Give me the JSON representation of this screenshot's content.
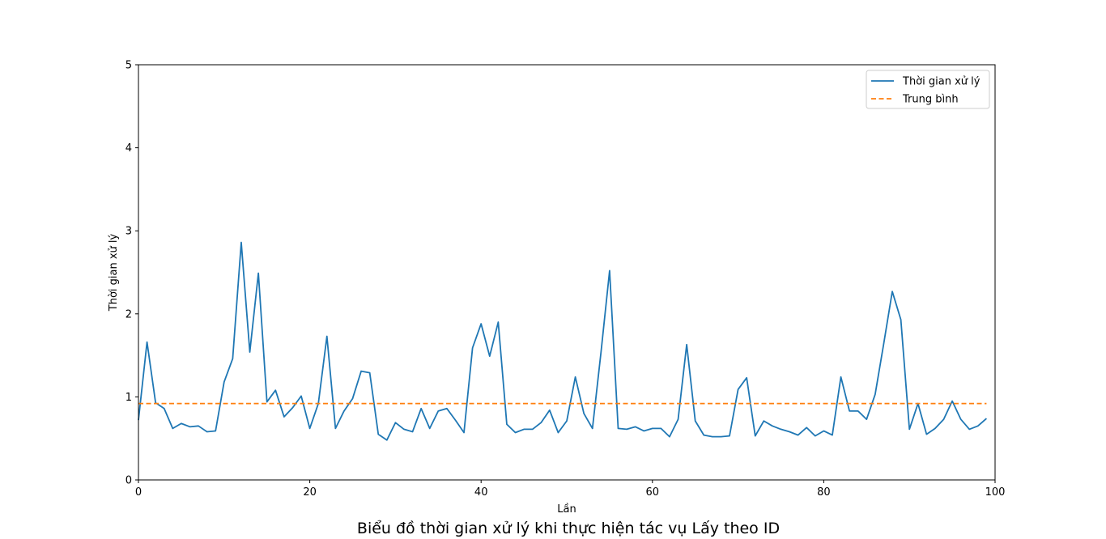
{
  "chart_data": {
    "type": "line",
    "title": "Biểu đồ thời gian xử lý khi thực hiện tác vụ Lấy theo ID",
    "xlabel": "Lần",
    "ylabel": "Thời gian xử lý",
    "xlim": [
      0,
      100
    ],
    "ylim": [
      0,
      5
    ],
    "xticks": [
      0,
      20,
      40,
      60,
      80,
      100
    ],
    "yticks": [
      0,
      1,
      2,
      3,
      4,
      5
    ],
    "legend_position": "top-right",
    "grid": false,
    "series": [
      {
        "name": "Thời gian xử lý",
        "color": "#1f77b4",
        "style": "solid",
        "x": [
          0,
          1,
          2,
          3,
          4,
          5,
          6,
          7,
          8,
          9,
          10,
          11,
          12,
          13,
          14,
          15,
          16,
          17,
          18,
          19,
          20,
          21,
          22,
          23,
          24,
          25,
          26,
          27,
          28,
          29,
          30,
          31,
          32,
          33,
          34,
          35,
          36,
          37,
          38,
          39,
          40,
          41,
          42,
          43,
          44,
          45,
          46,
          47,
          48,
          49,
          50,
          51,
          52,
          53,
          54,
          55,
          56,
          57,
          58,
          59,
          60,
          61,
          62,
          63,
          64,
          65,
          66,
          67,
          68,
          69,
          70,
          71,
          72,
          73,
          74,
          75,
          76,
          77,
          78,
          79,
          80,
          81,
          82,
          83,
          84,
          85,
          86,
          87,
          88,
          89,
          90,
          91,
          92,
          93,
          94,
          95,
          96,
          97,
          98,
          99
        ],
        "values": [
          0.72,
          1.66,
          0.93,
          0.86,
          0.62,
          0.68,
          0.64,
          0.65,
          0.58,
          0.59,
          1.18,
          1.46,
          2.86,
          1.54,
          2.49,
          0.94,
          1.08,
          0.76,
          0.87,
          1.01,
          0.62,
          0.92,
          1.73,
          0.62,
          0.83,
          0.98,
          1.31,
          1.29,
          0.55,
          0.48,
          0.69,
          0.61,
          0.58,
          0.86,
          0.62,
          0.83,
          0.86,
          0.72,
          0.57,
          1.59,
          1.88,
          1.49,
          1.9,
          0.67,
          0.57,
          0.61,
          0.61,
          0.69,
          0.84,
          0.57,
          0.71,
          1.24,
          0.8,
          0.62,
          1.54,
          2.52,
          0.62,
          0.61,
          0.64,
          0.59,
          0.62,
          0.62,
          0.52,
          0.73,
          1.63,
          0.71,
          0.54,
          0.52,
          0.52,
          0.53,
          1.09,
          1.23,
          0.53,
          0.71,
          0.65,
          0.61,
          0.58,
          0.54,
          0.63,
          0.53,
          0.59,
          0.54,
          1.24,
          0.83,
          0.83,
          0.73,
          1.03,
          1.64,
          2.27,
          1.93,
          0.61,
          0.92,
          0.55,
          0.62,
          0.73,
          0.95,
          0.73,
          0.61,
          0.65,
          0.74
        ]
      },
      {
        "name": "Trung bình",
        "color": "#ff7f0e",
        "style": "dashed",
        "x": [
          0,
          99
        ],
        "values": [
          0.92,
          0.92
        ]
      }
    ]
  }
}
